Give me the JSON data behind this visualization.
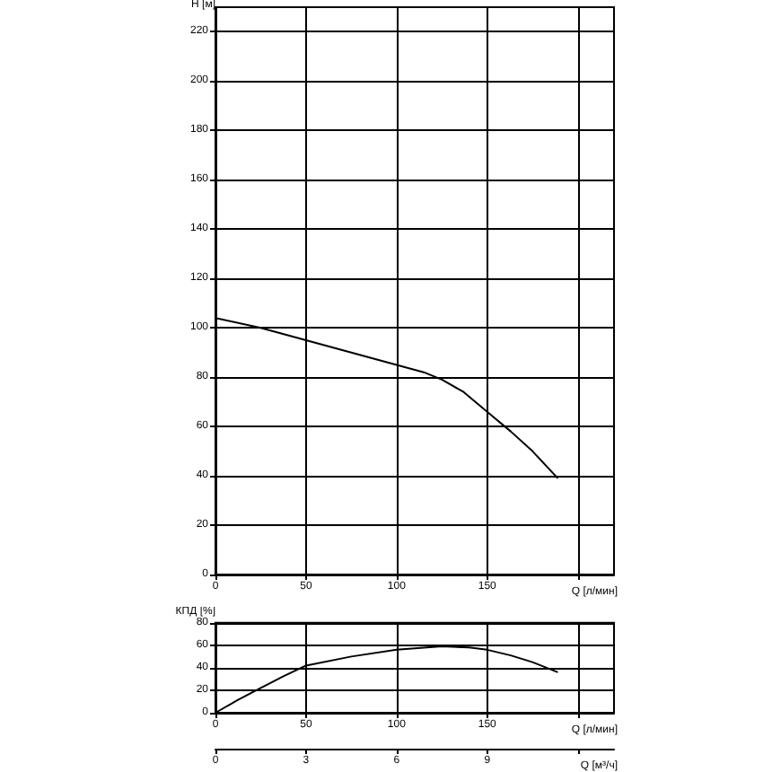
{
  "chart_data": [
    {
      "type": "line",
      "xlabel": "Q [л/мин]",
      "ylabel": "H [м]",
      "marker": "none",
      "line_style": "solid",
      "grid": true,
      "xlim": [
        0,
        220
      ],
      "xticks": [
        0,
        50,
        100,
        150,
        {
          "value": 200,
          "label": null
        }
      ],
      "ylim": [
        0,
        230
      ],
      "yticks": [
        0,
        20,
        40,
        60,
        80,
        100,
        120,
        140,
        160,
        180,
        200,
        220
      ],
      "x": [
        0,
        25,
        50,
        75,
        100,
        115,
        125,
        137,
        150,
        163,
        175,
        189
      ],
      "series": [
        {
          "color": "#000000",
          "values": [
            104,
            100,
            95,
            90,
            85,
            82,
            79,
            74,
            66,
            58,
            50,
            39
          ]
        }
      ]
    },
    {
      "type": "line",
      "xlabel": "Q [л/мин]",
      "ylabel": "КПД [%]",
      "marker": "none",
      "line_style": "solid",
      "grid": true,
      "xlim": [
        0,
        220
      ],
      "xticks": [
        0,
        50,
        100,
        150,
        {
          "value": 200,
          "label": null
        }
      ],
      "ylim": [
        0,
        80
      ],
      "yticks": [
        0,
        20,
        40,
        60,
        80
      ],
      "x2label": "Q [м³/ч]",
      "x2lim": [
        0,
        13.2
      ],
      "x2ticks": [
        0,
        3,
        6,
        9,
        {
          "value": 12,
          "label": null
        }
      ],
      "x": [
        0,
        12,
        25,
        37,
        50,
        75,
        100,
        125,
        140,
        150,
        163,
        175,
        189
      ],
      "series": [
        {
          "color": "#000000",
          "values": [
            0,
            11,
            22,
            32,
            42,
            50,
            56,
            59,
            58,
            56,
            51,
            45,
            36
          ]
        }
      ]
    }
  ]
}
